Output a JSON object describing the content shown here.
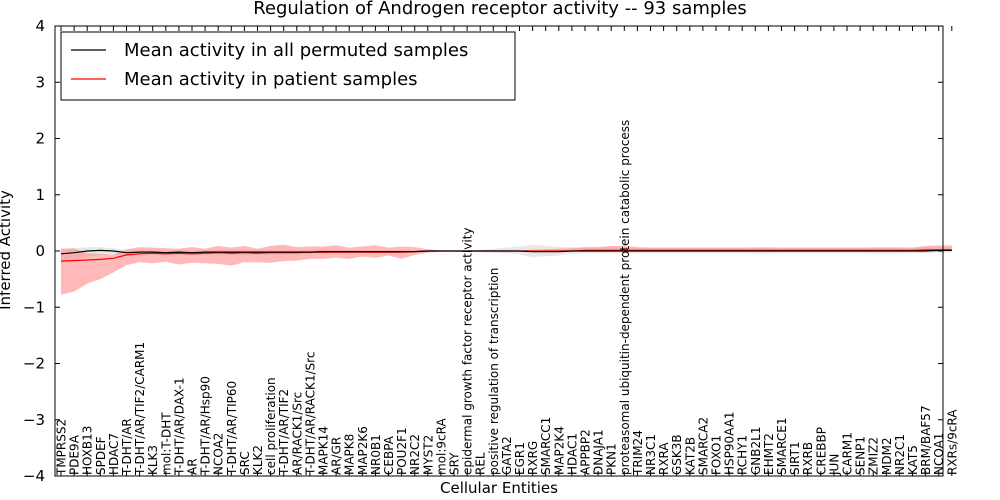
{
  "chart_data": {
    "type": "line",
    "title": "Regulation of Androgen receptor activity -- 93 samples",
    "xlabel": "Cellular Entities",
    "ylabel": "Inferred Activity",
    "ylim": [
      -4,
      4
    ],
    "yticks": [
      "−4",
      "−3",
      "−2",
      "−1",
      "0",
      "1",
      "2",
      "3",
      "4"
    ],
    "grid": false,
    "legend_position": "top-left",
    "categories": [
      "TMPRSS2",
      "PDE9A",
      "HOXB13",
      "SPDEF",
      "HDAC7",
      "T-DHT/AR",
      "T-DHT/AR/TIF2/CARM1",
      "KLK3",
      "mol:T-DHT",
      "T-DHT/AR/DAX-1",
      "AR",
      "T-DHT/AR/Hsp90",
      "NCOA2",
      "T-DHT/AR/TIP60",
      "SRC",
      "KLK2",
      "cell proliferation",
      "T-DHT/AR/TIF2",
      "AR/RACK1/Src",
      "T-DHT/AR/RACK1/Src",
      "MAPK14",
      "AR/GR",
      "MAPK8",
      "MAP2K6",
      "NR0B1",
      "CEBPA",
      "POU2F1",
      "NR2C2",
      "MYST2",
      "mol:9cRA",
      "SRY",
      "epidermal growth factor receptor activity",
      "REL",
      "positive regulation of transcription",
      "GATA2",
      "EGR1",
      "RXRG",
      "SMARCC1",
      "MAP2K4",
      "HDAC1",
      "APPBP2",
      "DNAJA1",
      "PKN1",
      "proteasomal ubiquitin-dependent protein catabolic process",
      "TRIM24",
      "NR3C1",
      "RXRA",
      "GSK3B",
      "KAT2B",
      "SMARCA2",
      "FOXO1",
      "HSP90AA1",
      "RCHY1",
      "GNB2L1",
      "EHMT2",
      "SMARCE1",
      "SIRT1",
      "RXRB",
      "CREBBP",
      "JUN",
      "CARM1",
      "SENP1",
      "ZMIZ2",
      "MDM2",
      "NR2C1",
      "KAT5",
      "BRM/BAF57",
      "NCOA1",
      "RXRs/9cRA"
    ],
    "series": [
      {
        "name": "Mean activity in all permuted samples",
        "color": "#000000",
        "values": [
          -0.05,
          -0.03,
          0.0,
          0.01,
          0.0,
          -0.03,
          -0.02,
          -0.02,
          -0.03,
          -0.02,
          -0.03,
          -0.02,
          -0.02,
          -0.02,
          -0.02,
          -0.02,
          -0.02,
          -0.02,
          -0.02,
          -0.02,
          -0.01,
          -0.01,
          -0.01,
          -0.01,
          -0.01,
          -0.01,
          -0.01,
          -0.01,
          0.0,
          0.0,
          0.0,
          0.0,
          0.0,
          0.0,
          0.0,
          0.0,
          -0.01,
          -0.01,
          -0.01,
          0.0,
          0.0,
          0.0,
          0.0,
          0.0,
          0.0,
          0.0,
          0.0,
          0.0,
          0.0,
          0.0,
          0.0,
          0.0,
          0.0,
          0.0,
          0.0,
          0.0,
          0.0,
          0.0,
          0.0,
          0.0,
          0.0,
          0.0,
          0.0,
          0.0,
          0.0,
          0.0,
          0.0,
          0.01,
          0.01
        ],
        "band_lower": [
          -0.15,
          -0.12,
          -0.1,
          -0.08,
          -0.07,
          -0.06,
          -0.05,
          -0.05,
          -0.05,
          -0.05,
          -0.05,
          -0.05,
          -0.05,
          -0.05,
          -0.05,
          -0.05,
          -0.05,
          -0.05,
          -0.04,
          -0.04,
          -0.04,
          -0.04,
          -0.04,
          -0.03,
          -0.03,
          -0.03,
          -0.03,
          -0.02,
          -0.01,
          0.0,
          0.0,
          0.0,
          -0.02,
          -0.03,
          -0.04,
          -0.06,
          -0.1,
          -0.08,
          -0.07,
          -0.05,
          -0.04,
          -0.04,
          -0.04,
          -0.04,
          -0.04,
          -0.04,
          -0.04,
          -0.04,
          -0.04,
          -0.04,
          -0.04,
          -0.04,
          -0.04,
          -0.05,
          -0.05,
          -0.04,
          -0.04,
          -0.04,
          -0.04,
          -0.04,
          -0.04,
          -0.04,
          -0.05,
          -0.05,
          -0.05,
          -0.04,
          -0.04,
          -0.04,
          -0.04
        ],
        "band_upper": [
          0.08,
          0.08,
          0.07,
          0.06,
          0.05,
          0.05,
          0.04,
          0.04,
          0.04,
          0.04,
          0.04,
          0.04,
          0.04,
          0.04,
          0.04,
          0.04,
          0.04,
          0.04,
          0.04,
          0.04,
          0.04,
          0.03,
          0.03,
          0.03,
          0.03,
          0.03,
          0.03,
          0.02,
          0.01,
          0.0,
          0.0,
          0.0,
          0.02,
          0.04,
          0.06,
          0.08,
          0.12,
          0.1,
          0.08,
          0.07,
          0.06,
          0.06,
          0.06,
          0.06,
          0.06,
          0.06,
          0.06,
          0.06,
          0.06,
          0.06,
          0.06,
          0.06,
          0.06,
          0.07,
          0.07,
          0.06,
          0.06,
          0.06,
          0.06,
          0.06,
          0.06,
          0.06,
          0.07,
          0.07,
          0.07,
          0.06,
          0.06,
          0.06,
          0.06
        ]
      },
      {
        "name": "Mean activity in patient samples",
        "color": "#ff0000",
        "values": [
          -0.18,
          -0.17,
          -0.16,
          -0.15,
          -0.13,
          -0.07,
          -0.05,
          -0.04,
          -0.05,
          -0.04,
          -0.05,
          -0.04,
          -0.03,
          -0.04,
          -0.03,
          -0.04,
          -0.03,
          -0.03,
          -0.03,
          -0.02,
          -0.02,
          -0.02,
          -0.02,
          -0.02,
          -0.02,
          -0.02,
          -0.02,
          -0.01,
          0.0,
          0.0,
          0.0,
          0.0,
          0.0,
          0.0,
          0.0,
          0.0,
          0.0,
          0.0,
          0.0,
          0.0,
          0.01,
          0.01,
          0.01,
          0.01,
          0.01,
          0.01,
          0.01,
          0.01,
          0.01,
          0.01,
          0.01,
          0.01,
          0.01,
          0.01,
          0.01,
          0.01,
          0.01,
          0.01,
          0.01,
          0.01,
          0.01,
          0.01,
          0.01,
          0.01,
          0.01,
          0.01,
          0.02,
          0.02,
          0.02
        ],
        "band_lower": [
          -0.6,
          -0.55,
          -0.42,
          -0.35,
          -0.25,
          -0.18,
          -0.15,
          -0.18,
          -0.14,
          -0.2,
          -0.16,
          -0.18,
          -0.2,
          -0.22,
          -0.17,
          -0.16,
          -0.18,
          -0.15,
          -0.14,
          -0.12,
          -0.12,
          -0.1,
          -0.12,
          -0.08,
          -0.1,
          -0.06,
          -0.12,
          -0.06,
          -0.03,
          -0.01,
          0.0,
          0.0,
          -0.01,
          -0.01,
          -0.01,
          -0.01,
          -0.01,
          -0.01,
          -0.01,
          -0.01,
          -0.01,
          -0.01,
          -0.01,
          -0.01,
          -0.01,
          -0.01,
          -0.01,
          -0.01,
          -0.01,
          -0.01,
          -0.01,
          -0.01,
          -0.01,
          -0.01,
          -0.01,
          -0.01,
          -0.01,
          -0.01,
          -0.01,
          -0.01,
          -0.01,
          -0.01,
          -0.01,
          -0.01,
          -0.01,
          -0.01,
          -0.01,
          -0.01,
          -0.01
        ],
        "band_upper": [
          0.22,
          0.22,
          0.12,
          0.1,
          0.06,
          0.1,
          0.12,
          0.1,
          0.1,
          0.08,
          0.12,
          0.08,
          0.12,
          0.1,
          0.12,
          0.08,
          0.12,
          0.14,
          0.1,
          0.1,
          0.1,
          0.12,
          0.08,
          0.1,
          0.12,
          0.08,
          0.1,
          0.08,
          0.03,
          0.01,
          0.0,
          0.0,
          0.01,
          0.01,
          0.01,
          0.01,
          0.02,
          0.03,
          0.04,
          0.05,
          0.06,
          0.06,
          0.08,
          0.08,
          0.06,
          0.05,
          0.05,
          0.05,
          0.05,
          0.05,
          0.05,
          0.05,
          0.05,
          0.05,
          0.05,
          0.05,
          0.05,
          0.05,
          0.05,
          0.05,
          0.05,
          0.05,
          0.05,
          0.05,
          0.05,
          0.05,
          0.07,
          0.08,
          0.08
        ]
      }
    ]
  }
}
